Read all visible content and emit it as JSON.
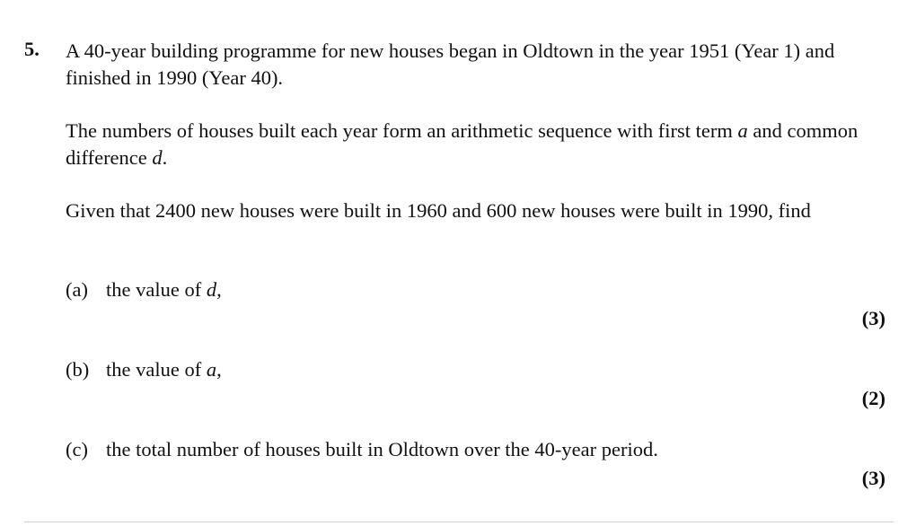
{
  "question": {
    "number": "5.",
    "intro": {
      "line1": "A 40-year building programme for new houses began in Oldtown in the year 1951 (Year 1) and finished in 1990 (Year 40)."
    },
    "sequence": {
      "before_a": "The numbers of houses built each year form an arithmetic sequence with first term ",
      "var_a": "a",
      "mid": " and common difference ",
      "var_d": "d",
      "end": "."
    },
    "given": "Given that 2400 new houses were built in 1960 and 600 new houses were built in 1990, find",
    "parts": [
      {
        "label": "(a)",
        "text": "the value of ",
        "var": "d",
        "suffix": ",",
        "marks": "(3)"
      },
      {
        "label": "(b)",
        "text": "the value of ",
        "var": "a",
        "suffix": ",",
        "marks": "(2)"
      },
      {
        "label": "(c)",
        "text": "the total number of houses built in Oldtown over the 40-year period.",
        "var": "",
        "suffix": "",
        "marks": "(3)"
      }
    ]
  }
}
